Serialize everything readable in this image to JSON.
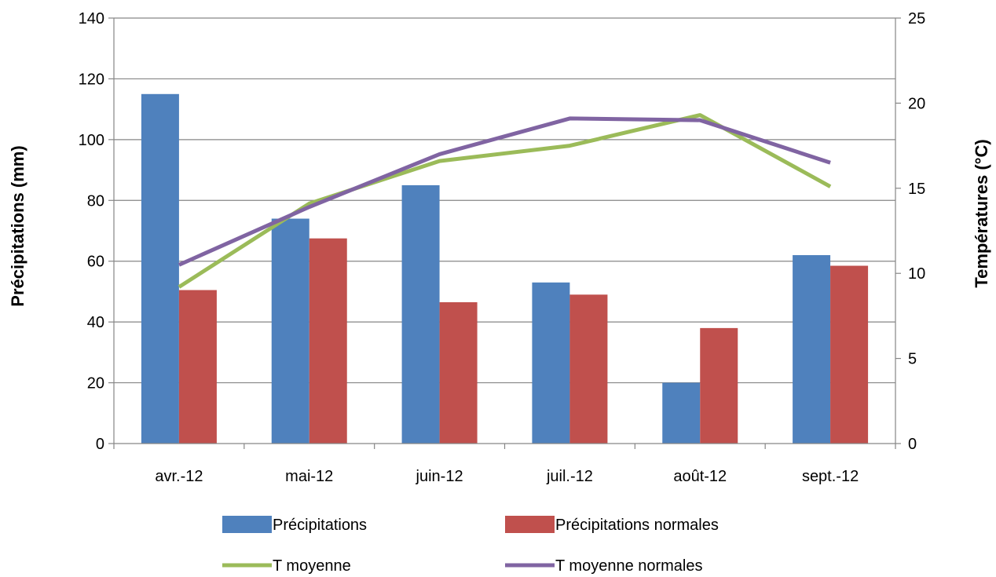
{
  "chart_data": {
    "type": "bar",
    "categories": [
      "avr.-12",
      "mai-12",
      "juin-12",
      "juil.-12",
      "août-12",
      "sept.-12"
    ],
    "ylabel": "Précipitations (mm)",
    "y2label": "Températures (°C)",
    "ylim": [
      0,
      140
    ],
    "y_ticks": [
      0,
      20,
      40,
      60,
      80,
      100,
      120,
      140
    ],
    "y2lim": [
      0,
      25
    ],
    "y2_ticks": [
      0,
      5,
      10,
      15,
      20,
      25
    ],
    "grid": true,
    "legend_position": "bottom",
    "bar_series": [
      {
        "name": "Précipitations",
        "color": "#4F81BD",
        "values": [
          115,
          74,
          85,
          53,
          20,
          62
        ]
      },
      {
        "name": "Précipitations normales",
        "color": "#C0504D",
        "values": [
          50.5,
          67.5,
          46.5,
          49,
          38,
          58.5
        ]
      }
    ],
    "line_series": [
      {
        "name": "T moyenne",
        "color": "#9BBB59",
        "axis": "right",
        "values": [
          9.2,
          14.1,
          16.6,
          17.5,
          19.3,
          15.1
        ]
      },
      {
        "name": "T moyenne normales",
        "color": "#8064A2",
        "axis": "right",
        "values": [
          10.5,
          13.9,
          17.0,
          19.1,
          19.0,
          16.5
        ]
      }
    ]
  }
}
